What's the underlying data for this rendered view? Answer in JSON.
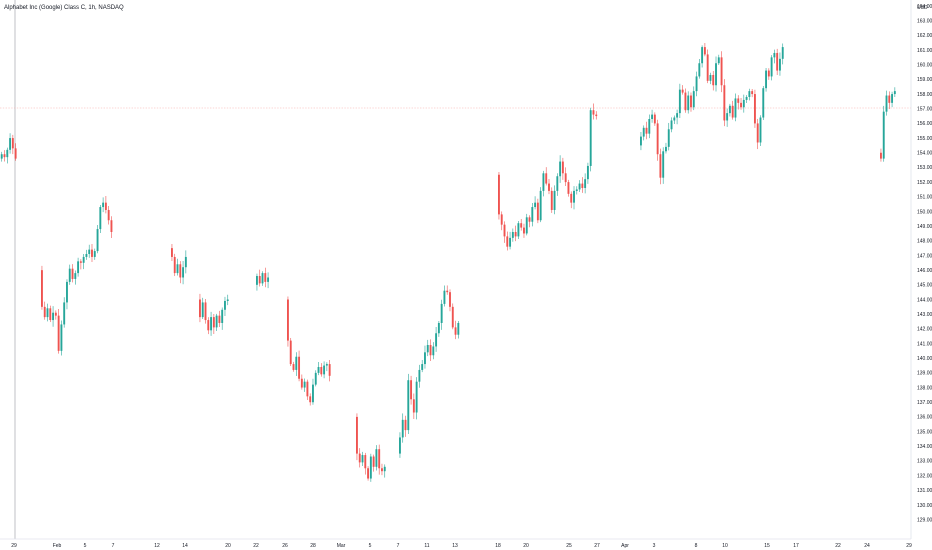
{
  "header": {
    "title": "Alphabet Inc (Google) Class C, 1h, NASDAQ"
  },
  "chart_data": {
    "type": "candlestick",
    "title": "Alphabet Inc (Google) Class C, 1h, NASDAQ",
    "currency": "USD",
    "ylim": [
      129,
      164
    ],
    "y_ticks": [
      "129.00",
      "130.00",
      "131.00",
      "132.00",
      "133.00",
      "134.00",
      "135.00",
      "136.00",
      "137.00",
      "138.00",
      "139.00",
      "140.00",
      "141.00",
      "142.00",
      "143.00",
      "144.00",
      "145.00",
      "146.00",
      "147.00",
      "148.00",
      "149.00",
      "150.00",
      "151.00",
      "152.00",
      "153.00",
      "154.00",
      "155.00",
      "156.00",
      "157.00",
      "158.00",
      "159.00",
      "160.00",
      "161.00",
      "162.00",
      "163.00",
      "164.00"
    ],
    "x_tick_labels": [
      "29",
      "Feb",
      "5",
      "7",
      "12",
      "14",
      "20",
      "22",
      "26",
      "28",
      "Mar",
      "5",
      "7",
      "11",
      "13",
      "18",
      "20",
      "25",
      "27",
      "Apr",
      "3",
      "8",
      "10",
      "15",
      "17",
      "22",
      "24",
      "29"
    ],
    "price_line": 158.0,
    "grid": false,
    "colors": {
      "up": "#26a69a",
      "down": "#ef5350",
      "price_line": "#f7a9a8",
      "crosshair": "#9598a1",
      "axis_text": "#131722"
    },
    "segments": [
      {
        "start": 154.0,
        "closes": [
          153.6,
          153.9,
          153.7,
          154.2,
          155.0,
          154.3,
          153.6
        ]
      },
      {
        "start": 146.0,
        "closes": [
          143.5,
          142.8,
          143.4,
          142.6,
          143.1,
          142.9,
          140.5,
          142.3,
          143.8,
          145.2,
          146.1,
          145.4,
          145.8,
          146.6,
          146.5,
          146.9,
          147.1,
          147.4,
          146.9,
          147.3,
          148.8,
          150.3,
          150.6,
          150.1,
          149.4,
          148.6
        ]
      },
      {
        "start": 147.5,
        "closes": [
          146.9,
          145.8,
          146.4,
          145.5,
          146.2,
          146.9
        ]
      },
      {
        "start": 144.0,
        "closes": [
          142.8,
          143.8,
          142.6,
          141.9,
          142.8,
          142.1,
          142.9,
          142.4,
          143.3,
          143.9,
          144.0
        ]
      },
      {
        "start": 145.0,
        "closes": [
          145.6,
          145.1,
          145.8,
          145.2,
          145.5
        ]
      },
      {
        "start": 144.0,
        "closes": [
          141.2,
          139.6,
          139.2,
          140.1,
          138.6,
          138.0,
          138.4,
          137.4,
          137.0,
          138.2,
          139.0,
          139.4,
          138.9,
          139.5,
          139.6,
          138.8
        ]
      },
      {
        "start": 136.0,
        "closes": [
          133.5,
          132.9,
          133.4,
          132.5,
          131.8,
          133.3,
          132.6,
          133.8,
          132.5,
          132.3,
          132.6
        ]
      },
      {
        "start": 133.5,
        "closes": [
          134.6,
          135.8,
          135.1,
          138.5,
          137.2,
          136.3,
          138.4,
          139.2,
          139.6,
          140.4,
          140.9,
          140.2,
          140.8,
          141.7,
          142.4,
          143.7,
          144.6,
          144.5,
          143.5,
          142.1,
          141.6,
          142.4
        ]
      },
      {
        "start": 152.5,
        "closes": [
          149.8,
          149.1,
          148.3,
          147.6,
          148.2,
          148.6,
          148.3,
          149.2,
          148.9,
          148.5,
          149.6,
          149.3,
          150.3,
          150.6,
          149.4,
          151.4,
          152.6,
          151.9,
          151.4,
          150.1,
          151.4,
          152.4,
          153.4,
          152.6,
          152.0,
          151.2,
          150.6,
          151.4,
          151.5,
          151.9,
          151.6,
          152.2,
          153.1,
          156.9,
          156.6,
          156.5
        ]
      },
      {
        "start": 154.5,
        "closes": [
          155.1,
          155.7,
          155.3,
          156.3,
          156.6,
          156.0,
          153.9,
          152.3,
          154.1,
          154.4,
          155.6,
          156.2,
          156.4,
          156.7,
          158.3,
          158.1,
          156.9,
          157.9,
          157.1,
          158.2,
          159.2,
          160.1,
          161.2,
          160.7,
          158.9,
          159.3,
          158.6,
          160.1,
          160.5,
          158.6,
          156.2,
          156.7,
          157.2,
          156.4,
          157.7,
          157.4,
          157.1,
          157.6,
          157.8,
          158.2,
          158.0,
          156.0,
          154.7,
          156.4,
          158.4,
          159.6,
          159.2,
          160.5,
          160.8,
          159.6,
          160.4,
          161.2
        ]
      },
      {
        "start": 154.0,
        "closes": [
          153.6,
          156.8,
          157.9,
          157.4,
          158.0,
          158.2
        ]
      }
    ]
  }
}
